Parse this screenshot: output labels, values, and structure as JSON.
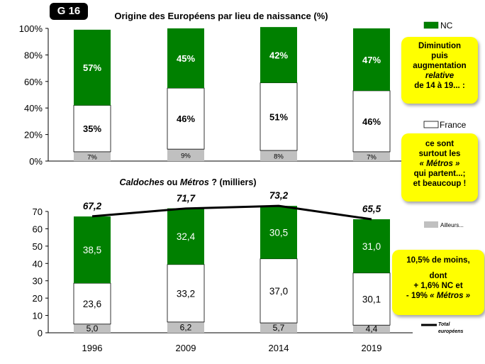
{
  "badge": "G 16",
  "chart_data": [
    {
      "type": "bar",
      "stacked": true,
      "percent": true,
      "title": "Origine des Européens par lieu de naissance (%)",
      "categories": [
        "1996",
        "2009",
        "2014",
        "2019"
      ],
      "series": [
        {
          "name": "Ailleurs...",
          "values": [
            7,
            9,
            8,
            7
          ],
          "labels": [
            "7%",
            "9%",
            "8%",
            "7%"
          ],
          "color": "#c0c0c0"
        },
        {
          "name": "France",
          "values": [
            35,
            46,
            51,
            46
          ],
          "labels": [
            "35%",
            "46%",
            "51%",
            "46%"
          ],
          "color": "#ffffff"
        },
        {
          "name": "NC",
          "values": [
            57,
            45,
            42,
            47
          ],
          "labels": [
            "57%",
            "45%",
            "42%",
            "47%"
          ],
          "color": "#008000"
        }
      ],
      "ylim": [
        0,
        100
      ],
      "yticks": [
        "0%",
        "20%",
        "40%",
        "60%",
        "80%",
        "100%"
      ]
    },
    {
      "type": "bar",
      "stacked": true,
      "title_parts": [
        "Caldoches",
        " ou ",
        "Métros",
        " ? (milliers)"
      ],
      "categories": [
        "1996",
        "2009",
        "2014",
        "2019"
      ],
      "series": [
        {
          "name": "Ailleurs...",
          "values": [
            5.0,
            6.2,
            5.7,
            4.4
          ],
          "labels": [
            "5,0",
            "6,2",
            "5,7",
            "4,4"
          ],
          "color": "#c0c0c0"
        },
        {
          "name": "France",
          "values": [
            23.6,
            33.2,
            37.0,
            30.1
          ],
          "labels": [
            "23,6",
            "33,2",
            "37,0",
            "30,1"
          ],
          "color": "#ffffff"
        },
        {
          "name": "NC",
          "values": [
            38.5,
            32.4,
            30.5,
            31.0
          ],
          "labels": [
            "38,5",
            "32,4",
            "30,5",
            "31,0"
          ],
          "color": "#008000"
        }
      ],
      "line": {
        "name": "Total européens",
        "values": [
          67.2,
          71.7,
          73.2,
          65.5
        ],
        "labels": [
          "67,2",
          "71,7",
          "73,2",
          "65,5"
        ],
        "color": "#000000"
      },
      "ylim": [
        0,
        70
      ],
      "yticks": [
        "0",
        "10",
        "20",
        "30",
        "40",
        "50",
        "60",
        "70"
      ]
    }
  ],
  "legend": {
    "nc": "NC",
    "france": "France",
    "ailleurs": "Ailleurs...",
    "total_line1": "Total",
    "total_line2": "européens"
  },
  "notes": {
    "note1": [
      "Diminution",
      "puis",
      "augmentation",
      "relative",
      "de 14 à 19... :"
    ],
    "note2": [
      "ce sont",
      "surtout les",
      "« Métros »",
      "qui partent...;",
      "et beaucoup !"
    ],
    "note3": [
      "10,5% de moins,",
      "",
      "dont",
      "+ 1,6% NC et",
      "- 19% « Métros »"
    ]
  }
}
